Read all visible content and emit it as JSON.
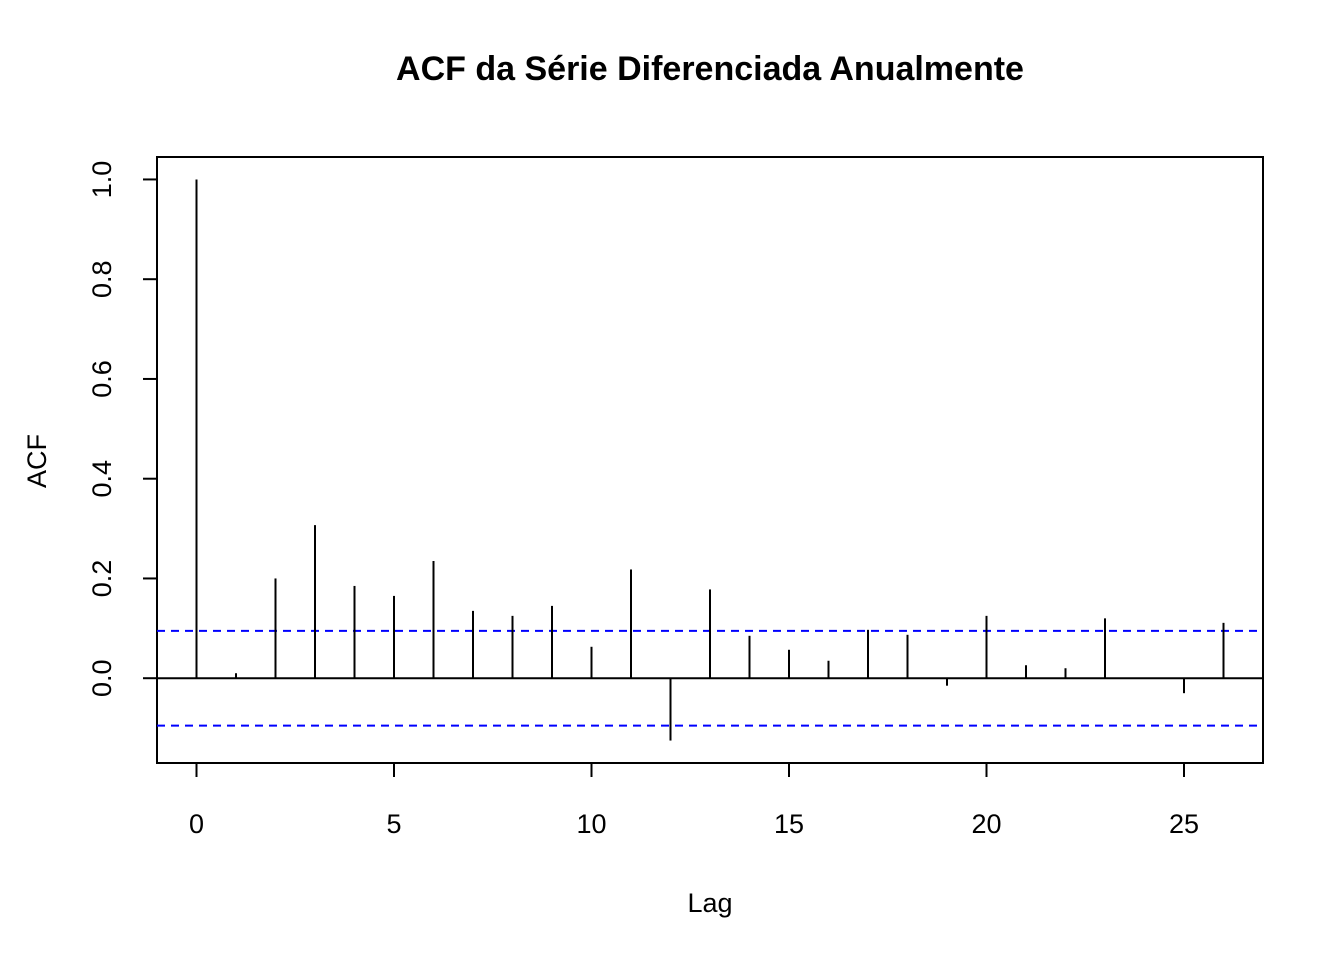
{
  "chart_data": {
    "type": "bar",
    "title": "ACF da Série Diferenciada Anualmente",
    "xlabel": "Lag",
    "ylabel": "ACF",
    "xlim": [
      -1,
      27
    ],
    "ylim": [
      -0.17,
      1.045
    ],
    "x_ticks": [
      0,
      5,
      10,
      15,
      20,
      25
    ],
    "x_tick_labels": [
      "0",
      "5",
      "10",
      "15",
      "20",
      "25"
    ],
    "y_ticks": [
      0.0,
      0.2,
      0.4,
      0.6,
      0.8,
      1.0
    ],
    "y_tick_labels": [
      "0.0",
      "0.2",
      "0.4",
      "0.6",
      "0.8",
      "1.0"
    ],
    "grid": false,
    "lags": [
      0,
      1,
      2,
      3,
      4,
      5,
      6,
      7,
      8,
      9,
      10,
      11,
      12,
      13,
      14,
      15,
      16,
      17,
      18,
      19,
      20,
      21,
      22,
      23,
      24,
      25,
      26
    ],
    "values": [
      1.0,
      0.01,
      0.2,
      0.307,
      0.185,
      0.165,
      0.235,
      0.135,
      0.125,
      0.145,
      0.063,
      0.218,
      -0.125,
      0.178,
      0.085,
      0.057,
      0.035,
      0.097,
      0.087,
      -0.015,
      0.125,
      0.026,
      0.02,
      0.12,
      0.0,
      -0.03,
      0.111
    ],
    "confidence_band": {
      "upper": 0.095,
      "lower": -0.095,
      "color": "#0000ff",
      "style": "dashed"
    },
    "bar_color": "#000000"
  }
}
